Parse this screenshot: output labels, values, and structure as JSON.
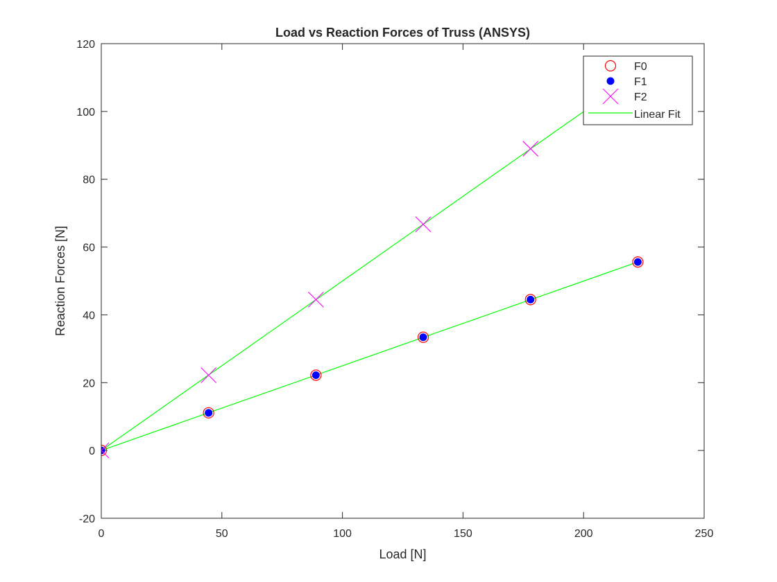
{
  "chart_data": {
    "type": "scatter",
    "title": "Load vs Reaction Forces of Truss (ANSYS)",
    "xlabel": "Load [N]",
    "ylabel": "Reaction Forces [N]",
    "xlim": [
      0,
      250
    ],
    "ylim": [
      -20,
      120
    ],
    "xticks": [
      0,
      50,
      100,
      150,
      200,
      250
    ],
    "yticks": [
      -20,
      0,
      20,
      40,
      60,
      80,
      100,
      120
    ],
    "grid": false,
    "legend_position": "top-right",
    "series": [
      {
        "name": "F0",
        "marker": "open-circle",
        "color": "#ff0000",
        "x": [
          0,
          44.5,
          89,
          133.5,
          178,
          222.5
        ],
        "y": [
          0,
          11.1,
          22.2,
          33.4,
          44.5,
          55.6
        ]
      },
      {
        "name": "F1",
        "marker": "filled-circle",
        "color": "#0000ff",
        "x": [
          0,
          44.5,
          89,
          133.5,
          178,
          222.5
        ],
        "y": [
          0,
          11.1,
          22.2,
          33.4,
          44.5,
          55.6
        ]
      },
      {
        "name": "F2",
        "marker": "x",
        "color": "#ff00ff",
        "x": [
          0,
          44.5,
          89,
          133.5,
          178,
          222.5
        ],
        "y": [
          0,
          22.2,
          44.5,
          66.7,
          89,
          111.2
        ]
      }
    ],
    "fit_lines": [
      {
        "name": "Linear Fit",
        "color": "#00ff00",
        "x": [
          0,
          222.5
        ],
        "y": [
          0,
          55.6
        ]
      },
      {
        "name": "Linear Fit",
        "color": "#00ff00",
        "x": [
          0,
          222.5
        ],
        "y": [
          0,
          111.2
        ]
      }
    ],
    "legend": [
      {
        "label": "F0",
        "marker": "open-circle",
        "color": "#ff0000"
      },
      {
        "label": "F1",
        "marker": "filled-circle",
        "color": "#0000ff"
      },
      {
        "label": "F2",
        "marker": "x",
        "color": "#ff00ff"
      },
      {
        "label": "Linear Fit",
        "marker": "line",
        "color": "#00ff00"
      }
    ]
  }
}
